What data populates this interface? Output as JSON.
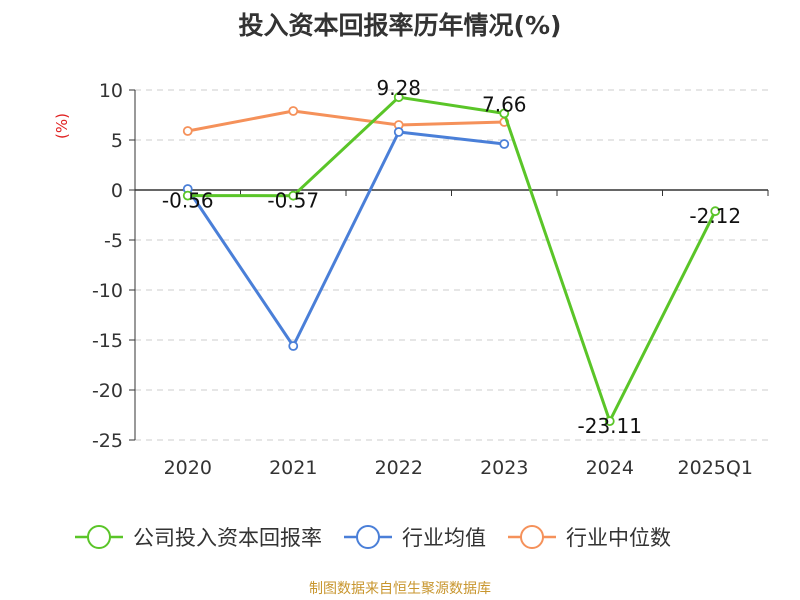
{
  "chart_data": {
    "type": "line",
    "title": "投入资本回报率历年情况(%)",
    "ylabel": "(%)",
    "categories": [
      "2020",
      "2021",
      "2022",
      "2023",
      "2024",
      "2025Q1"
    ],
    "ylim": [
      -25,
      10
    ],
    "yticks": [
      10,
      5,
      0,
      -5,
      -10,
      -15,
      -20,
      -25
    ],
    "grid": true,
    "legend_position": "bottom",
    "series": [
      {
        "name": "公司投入资本回报率",
        "color": "#5ac528",
        "values": [
          -0.56,
          -0.57,
          9.28,
          7.66,
          -23.11,
          -2.12
        ],
        "labels": [
          "-0.56",
          "-0.57",
          "9.28",
          "7.66",
          "-23.11",
          "-2.12"
        ]
      },
      {
        "name": "行业均值",
        "color": "#4a7fd8",
        "values": [
          0.1,
          -15.6,
          5.8,
          4.6,
          null,
          null
        ]
      },
      {
        "name": "行业中位数",
        "color": "#f5915a",
        "values": [
          5.9,
          7.9,
          6.5,
          6.8,
          null,
          null
        ]
      }
    ]
  },
  "source_text": "制图数据来自恒生聚源数据库"
}
